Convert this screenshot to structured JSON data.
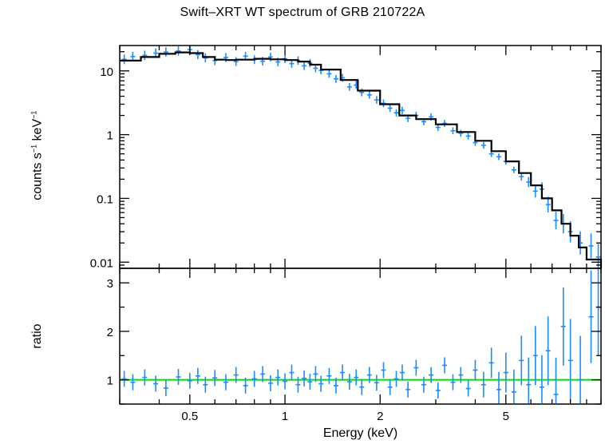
{
  "chart_data": [
    {
      "panel": "spectrum",
      "type": "scatter",
      "title": "Swift–XRT WT spectrum of GRB 210722A",
      "ylabel_main": "counts s",
      "ylabel_exp1": "−1",
      "ylabel_mid": " keV",
      "ylabel_exp2": "−1",
      "xlabel": "Energy (keV)",
      "xscale": "log",
      "yscale": "log",
      "xlim": [
        0.3,
        10
      ],
      "ylim": [
        0.008,
        25
      ],
      "yticks": [
        {
          "value": 10,
          "label": "10"
        },
        {
          "value": 1,
          "label": "1"
        },
        {
          "value": 0.1,
          "label": "0.1"
        },
        {
          "value": 0.01,
          "label": "0.01"
        }
      ],
      "data_color": "#1a8cff",
      "model_color": "#000000",
      "model": {
        "name": "model",
        "x": [
          0.3,
          0.35,
          0.4,
          0.45,
          0.5,
          0.55,
          0.6,
          0.65,
          0.7,
          0.8,
          0.9,
          1.0,
          1.1,
          1.2,
          1.3,
          1.5,
          1.7,
          2.0,
          2.3,
          2.6,
          3.0,
          3.5,
          4.0,
          4.5,
          5.0,
          5.5,
          6.0,
          6.5,
          7.0,
          7.5,
          8.0,
          8.5,
          9.0,
          10.0
        ],
        "y": [
          14.5,
          16.5,
          18.5,
          19.5,
          19.0,
          16.5,
          15.0,
          14.8,
          15.0,
          15.5,
          15.2,
          14.8,
          14.0,
          12.5,
          10.5,
          7.2,
          4.9,
          3.0,
          2.0,
          1.75,
          1.45,
          1.1,
          0.8,
          0.55,
          0.38,
          0.25,
          0.16,
          0.1,
          0.065,
          0.04,
          0.026,
          0.017,
          0.011,
          0.006
        ]
      },
      "spectrum": [
        [
          0.31,
          15.2
        ],
        [
          0.33,
          16.8
        ],
        [
          0.36,
          17.5
        ],
        [
          0.39,
          19.0
        ],
        [
          0.42,
          19.8
        ],
        [
          0.46,
          20.5
        ],
        [
          0.5,
          21.5
        ],
        [
          0.53,
          18.0
        ],
        [
          0.56,
          16.0
        ],
        [
          0.6,
          14.5
        ],
        [
          0.65,
          16.2
        ],
        [
          0.7,
          14.0
        ],
        [
          0.75,
          17.0
        ],
        [
          0.8,
          15.0
        ],
        [
          0.85,
          14.2
        ],
        [
          0.9,
          16.5
        ],
        [
          0.95,
          13.8
        ],
        [
          1.0,
          15.5
        ],
        [
          1.05,
          13.0
        ],
        [
          1.1,
          14.5
        ],
        [
          1.15,
          12.0
        ],
        [
          1.2,
          13.2
        ],
        [
          1.25,
          11.0
        ],
        [
          1.3,
          10.2
        ],
        [
          1.38,
          9.0
        ],
        [
          1.45,
          7.5
        ],
        [
          1.52,
          7.8
        ],
        [
          1.6,
          5.6
        ],
        [
          1.68,
          6.0
        ],
        [
          1.75,
          4.6
        ],
        [
          1.85,
          4.2
        ],
        [
          1.95,
          3.5
        ],
        [
          2.05,
          3.1
        ],
        [
          2.15,
          2.6
        ],
        [
          2.25,
          2.2
        ],
        [
          2.35,
          2.4
        ],
        [
          2.45,
          1.8
        ],
        [
          2.6,
          2.0
        ],
        [
          2.75,
          1.6
        ],
        [
          2.9,
          1.9
        ],
        [
          3.05,
          1.3
        ],
        [
          3.2,
          1.5
        ],
        [
          3.4,
          1.15
        ],
        [
          3.6,
          1.05
        ],
        [
          3.8,
          0.95
        ],
        [
          4.0,
          0.75
        ],
        [
          4.25,
          0.68
        ],
        [
          4.5,
          0.5
        ],
        [
          4.75,
          0.45
        ],
        [
          5.0,
          0.38
        ],
        [
          5.3,
          0.28
        ],
        [
          5.6,
          0.22
        ],
        [
          5.9,
          0.18
        ],
        [
          6.2,
          0.13
        ],
        [
          6.5,
          0.14
        ],
        [
          6.8,
          0.08
        ],
        [
          7.2,
          0.045
        ],
        [
          7.6,
          0.04
        ],
        [
          8.0,
          0.03
        ],
        [
          8.6,
          0.02
        ],
        [
          9.3,
          0.018
        ],
        [
          9.8,
          0.012
        ]
      ]
    },
    {
      "panel": "ratio",
      "type": "scatter",
      "ylabel": "ratio",
      "xlabel": "Energy (keV)",
      "xscale": "log",
      "xlim": [
        0.3,
        10
      ],
      "ylim": [
        0.5,
        3.3
      ],
      "yticks": [
        {
          "value": 1,
          "label": "1"
        },
        {
          "value": 2,
          "label": "2"
        },
        {
          "value": 3,
          "label": "3"
        }
      ],
      "xticks": [
        {
          "value": 0.5,
          "label": "0.5"
        },
        {
          "value": 1,
          "label": "1"
        },
        {
          "value": 2,
          "label": "2"
        },
        {
          "value": 5,
          "label": "5"
        }
      ],
      "reference_line": {
        "y": 1,
        "color": "#00e000"
      },
      "data_color": "#1a8cff",
      "ratio": [
        [
          0.31,
          1.02
        ],
        [
          0.33,
          0.95
        ],
        [
          0.36,
          1.05
        ],
        [
          0.39,
          0.92
        ],
        [
          0.42,
          0.83
        ],
        [
          0.46,
          1.06
        ],
        [
          0.5,
          0.98
        ],
        [
          0.53,
          1.08
        ],
        [
          0.56,
          0.9
        ],
        [
          0.6,
          1.04
        ],
        [
          0.65,
          0.95
        ],
        [
          0.7,
          1.1
        ],
        [
          0.75,
          0.88
        ],
        [
          0.8,
          1.02
        ],
        [
          0.85,
          1.12
        ],
        [
          0.9,
          0.93
        ],
        [
          0.95,
          1.05
        ],
        [
          1.0,
          0.97
        ],
        [
          1.05,
          1.15
        ],
        [
          1.1,
          0.9
        ],
        [
          1.15,
          1.03
        ],
        [
          1.2,
          0.96
        ],
        [
          1.25,
          1.12
        ],
        [
          1.3,
          0.92
        ],
        [
          1.38,
          1.08
        ],
        [
          1.45,
          0.88
        ],
        [
          1.52,
          1.15
        ],
        [
          1.6,
          0.96
        ],
        [
          1.68,
          1.05
        ],
        [
          1.75,
          0.85
        ],
        [
          1.85,
          1.1
        ],
        [
          1.95,
          0.94
        ],
        [
          2.05,
          1.2
        ],
        [
          2.15,
          0.85
        ],
        [
          2.25,
          1.02
        ],
        [
          2.35,
          1.15
        ],
        [
          2.45,
          0.8
        ],
        [
          2.6,
          1.25
        ],
        [
          2.75,
          0.9
        ],
        [
          2.9,
          1.1
        ],
        [
          3.05,
          0.78
        ],
        [
          3.2,
          1.3
        ],
        [
          3.4,
          0.95
        ],
        [
          3.6,
          1.1
        ],
        [
          3.8,
          0.82
        ],
        [
          4.0,
          1.2
        ],
        [
          4.25,
          0.9
        ],
        [
          4.5,
          1.35
        ],
        [
          4.75,
          0.8
        ],
        [
          5.0,
          1.15
        ],
        [
          5.3,
          0.75
        ],
        [
          5.6,
          1.4
        ],
        [
          5.9,
          0.9
        ],
        [
          6.2,
          1.5
        ],
        [
          6.5,
          0.85
        ],
        [
          6.8,
          1.6
        ],
        [
          7.2,
          0.7
        ],
        [
          7.6,
          2.1
        ],
        [
          8.0,
          1.4
        ],
        [
          8.6,
          1.0
        ],
        [
          9.3,
          2.3
        ],
        [
          9.8,
          2.5
        ]
      ]
    }
  ]
}
